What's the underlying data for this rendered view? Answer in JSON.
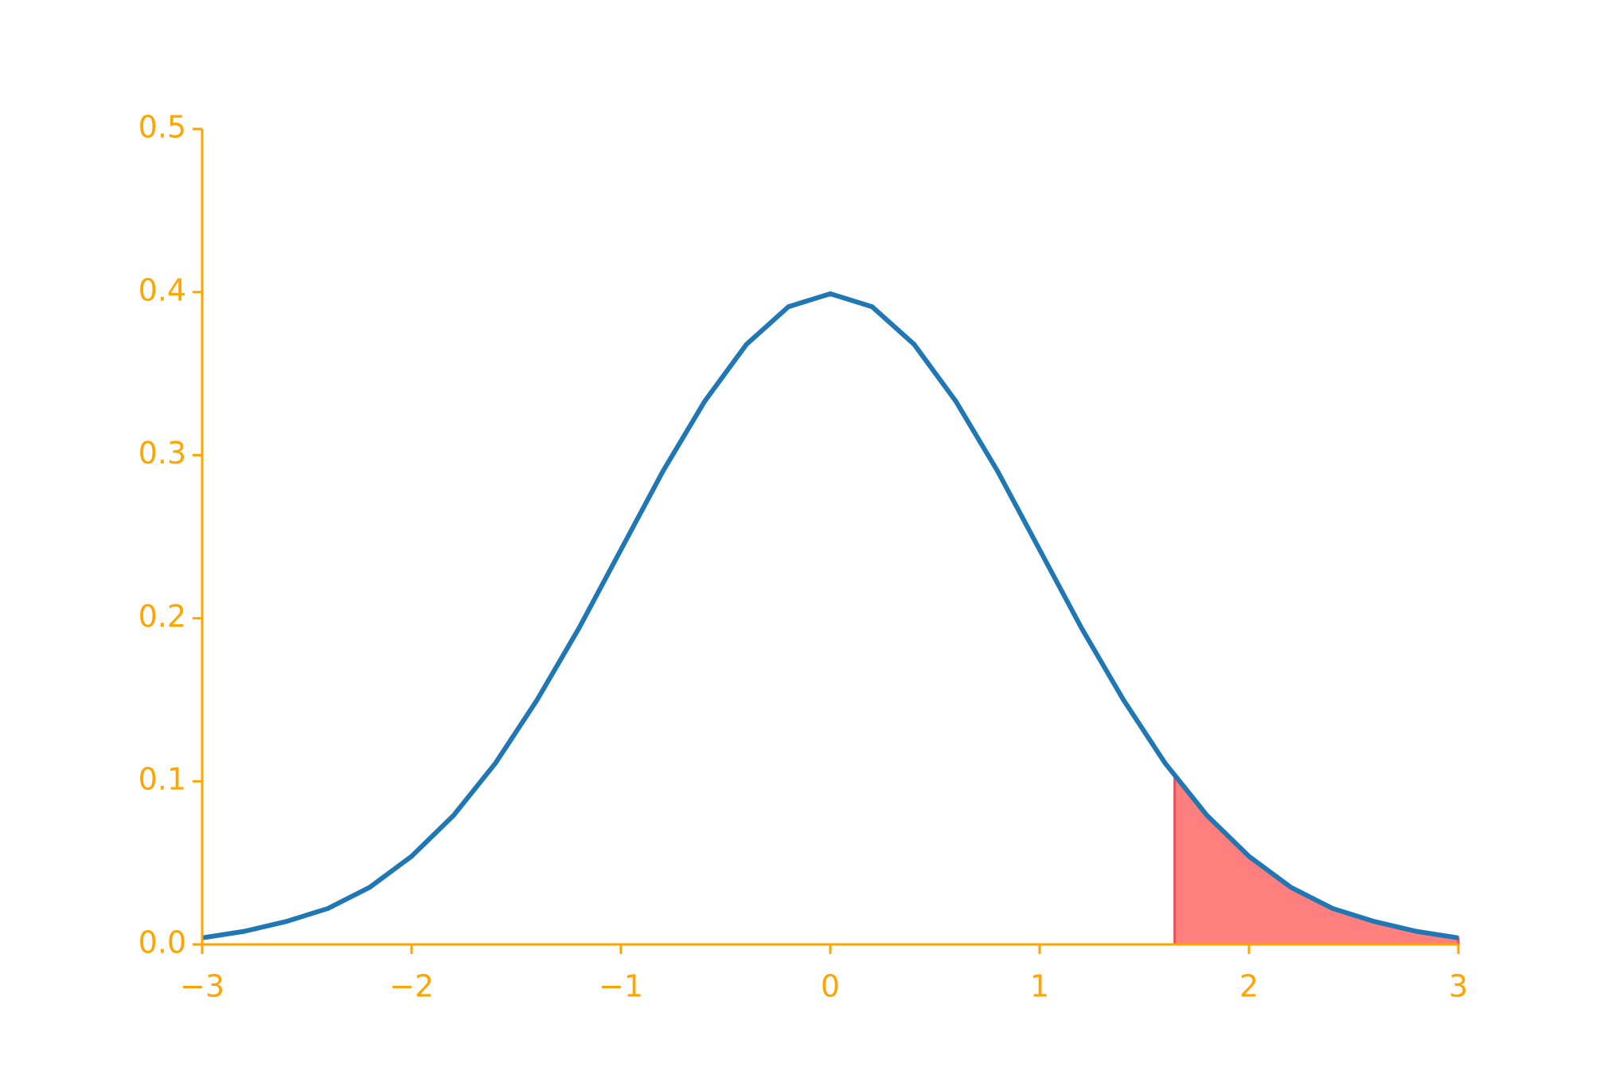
{
  "chart_data": {
    "type": "line",
    "series": [
      {
        "color": "#1f77b4",
        "x": [
          -3.0,
          -2.8,
          -2.6,
          -2.4,
          -2.2,
          -2.0,
          -1.8,
          -1.6,
          -1.4,
          -1.2,
          -1.0,
          -0.8,
          -0.6,
          -0.4,
          -0.2,
          0.0,
          0.2,
          0.4,
          0.6,
          0.8,
          1.0,
          1.2,
          1.4,
          1.6,
          1.8,
          2.0,
          2.2,
          2.4,
          2.6,
          2.8,
          3.0
        ],
        "values": [
          0.004,
          0.008,
          0.014,
          0.022,
          0.035,
          0.054,
          0.079,
          0.111,
          0.15,
          0.194,
          0.242,
          0.29,
          0.333,
          0.368,
          0.391,
          0.399,
          0.391,
          0.368,
          0.333,
          0.29,
          0.242,
          0.194,
          0.15,
          0.111,
          0.079,
          0.054,
          0.035,
          0.022,
          0.014,
          0.008,
          0.004
        ]
      },
      {
        "color": "#ff7f7f",
        "fill": true,
        "x": [
          1.645,
          1.8,
          2.0,
          2.2,
          2.4,
          2.6,
          2.8,
          3.0
        ],
        "values": [
          0.103,
          0.079,
          0.054,
          0.035,
          0.022,
          0.014,
          0.008,
          0.004
        ]
      }
    ],
    "xlim": [
      -3,
      3
    ],
    "xticks": [
      {
        "value": -3,
        "label": "−3"
      },
      {
        "value": -2,
        "label": "−2"
      },
      {
        "value": -1,
        "label": "−1"
      },
      0,
      1,
      2,
      3
    ],
    "ylim": [
      0,
      0.5
    ],
    "yticks": [
      {
        "value": 0,
        "label": "0.0"
      },
      0.1,
      0.2,
      0.3,
      0.4,
      0.5
    ],
    "axis_color": "#ffa500",
    "grid": false
  }
}
